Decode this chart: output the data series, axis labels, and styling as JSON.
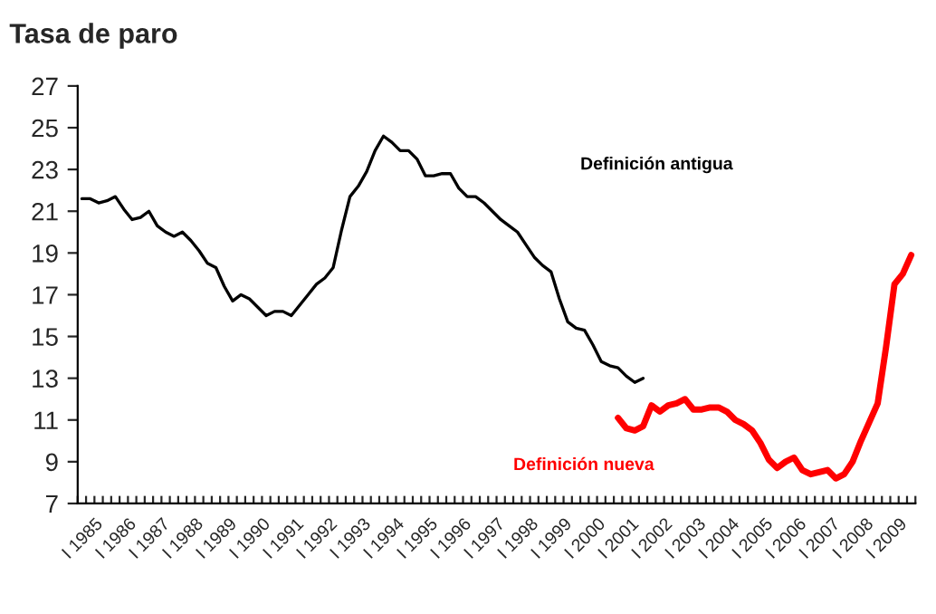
{
  "chart_data": {
    "type": "line",
    "title": "Tasa de paro",
    "categories": [
      "I 1985",
      null,
      null,
      null,
      "I 1986",
      null,
      null,
      null,
      "I 1987",
      null,
      null,
      null,
      "I 1988",
      null,
      null,
      null,
      "I 1989",
      null,
      null,
      null,
      "I 1990",
      null,
      null,
      null,
      "I 1991",
      null,
      null,
      null,
      "I 1992",
      null,
      null,
      null,
      "I 1993",
      null,
      null,
      null,
      "I 1994",
      null,
      null,
      null,
      "I 1995",
      null,
      null,
      null,
      "I 1996",
      null,
      null,
      null,
      "I 1997",
      null,
      null,
      null,
      "I 1998",
      null,
      null,
      null,
      "I 1999",
      null,
      null,
      null,
      "I 2000",
      null,
      null,
      null,
      "I 2001",
      null,
      null,
      null,
      "I 2002",
      null,
      null,
      null,
      "I 2003",
      null,
      null,
      null,
      "I 2004",
      null,
      null,
      null,
      "I 2005",
      null,
      null,
      null,
      "I 2006",
      null,
      null,
      null,
      "I 2007",
      null,
      null,
      null,
      "I 2008",
      null,
      null,
      null,
      "I 2009",
      null,
      null,
      null
    ],
    "series": [
      {
        "name": "Definición antigua",
        "color": "#000000",
        "values": [
          21.6,
          21.6,
          21.4,
          21.5,
          21.7,
          21.1,
          20.6,
          20.7,
          21.0,
          20.3,
          20.0,
          19.8,
          20.0,
          19.6,
          19.1,
          18.5,
          18.3,
          17.4,
          16.7,
          17.0,
          16.8,
          16.4,
          16.0,
          16.2,
          16.2,
          16.0,
          16.5,
          17.0,
          17.5,
          17.8,
          18.3,
          20.1,
          21.7,
          22.2,
          22.9,
          23.9,
          24.6,
          24.3,
          23.9,
          23.9,
          23.5,
          22.7,
          22.7,
          22.8,
          22.8,
          22.1,
          21.7,
          21.7,
          21.4,
          21.0,
          20.6,
          20.3,
          20.0,
          19.4,
          18.8,
          18.4,
          18.1,
          16.8,
          15.7,
          15.4,
          15.3,
          14.6,
          13.8,
          13.6,
          13.5,
          13.1,
          12.8,
          13.0,
          null,
          null,
          null,
          null,
          null,
          null,
          null,
          null,
          null,
          null,
          null,
          null,
          null,
          null,
          null,
          null,
          null,
          null,
          null,
          null,
          null,
          null,
          null,
          null,
          null,
          null,
          null,
          null,
          null,
          null,
          null,
          null
        ]
      },
      {
        "name": "Definición nueva",
        "color": "#ff0000",
        "values": [
          null,
          null,
          null,
          null,
          null,
          null,
          null,
          null,
          null,
          null,
          null,
          null,
          null,
          null,
          null,
          null,
          null,
          null,
          null,
          null,
          null,
          null,
          null,
          null,
          null,
          null,
          null,
          null,
          null,
          null,
          null,
          null,
          null,
          null,
          null,
          null,
          null,
          null,
          null,
          null,
          null,
          null,
          null,
          null,
          null,
          null,
          null,
          null,
          null,
          null,
          null,
          null,
          null,
          null,
          null,
          null,
          null,
          null,
          null,
          null,
          null,
          null,
          null,
          null,
          11.1,
          10.6,
          10.5,
          10.7,
          11.7,
          11.4,
          11.7,
          11.8,
          12.0,
          11.5,
          11.5,
          11.6,
          11.6,
          11.4,
          11.0,
          10.8,
          10.5,
          9.9,
          9.1,
          8.7,
          9.0,
          9.2,
          8.6,
          8.4,
          8.5,
          8.6,
          8.2,
          8.4,
          9.0,
          10.0,
          10.9,
          11.8,
          14.5,
          17.5,
          18.0,
          18.9
        ]
      }
    ],
    "ylim": [
      7,
      27
    ],
    "yticks": [
      7,
      9,
      11,
      13,
      15,
      17,
      19,
      21,
      23,
      25,
      27
    ],
    "grid": false,
    "legend": false
  }
}
